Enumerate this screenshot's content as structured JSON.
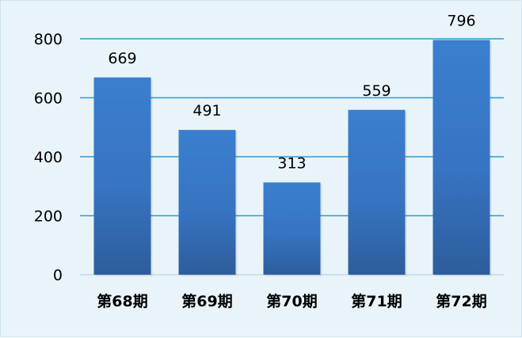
{
  "chart_data": {
    "type": "bar",
    "title": "",
    "xlabel": "",
    "ylabel": "",
    "categories": [
      "第68期",
      "第69期",
      "第70期",
      "第71期",
      "第72期"
    ],
    "values": [
      669,
      491,
      313,
      559,
      796
    ],
    "ylim": [
      0,
      800
    ],
    "yticks": [
      "0",
      "200",
      "400",
      "600",
      "800"
    ],
    "data_labels": [
      "669",
      "491",
      "313",
      "559",
      "796"
    ],
    "grid": true,
    "legend": "none",
    "colors": {
      "bar_top": "#3a7fcf",
      "bar_bottom": "#2d5d9c",
      "grid": "#2e9bd0",
      "background": "#e8f4f9"
    }
  }
}
